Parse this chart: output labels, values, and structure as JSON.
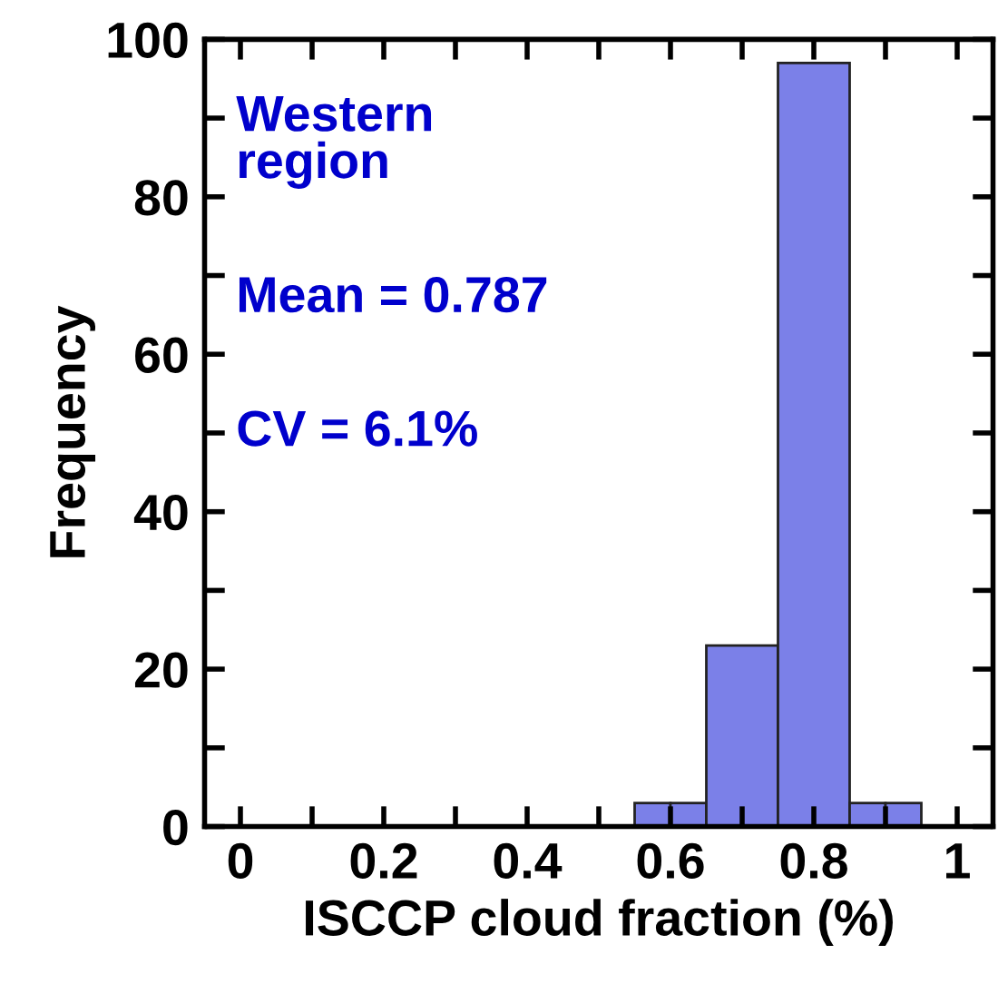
{
  "chart_data": {
    "type": "histogram",
    "xlabel": "ISCCP cloud fraction (%)",
    "ylabel": "Frequency",
    "bins": [
      0.55,
      0.6,
      0.65,
      0.75,
      0.85,
      0.9,
      0.95
    ],
    "values": [
      3,
      3,
      23,
      97,
      3,
      3
    ],
    "color": "#7b80e8",
    "xlim": [
      -0.05,
      1.05
    ],
    "xticks": [
      0,
      {
        "value": 0.1,
        "label": null
      },
      0.2,
      {
        "value": 0.3,
        "label": null
      },
      0.4,
      {
        "value": 0.5,
        "label": null
      },
      0.6,
      {
        "value": 0.7,
        "label": null
      },
      0.8,
      {
        "value": 0.9,
        "label": null
      },
      1
    ],
    "ylim": [
      0,
      100
    ],
    "yticks": [
      0,
      {
        "value": 10,
        "label": null
      },
      20,
      {
        "value": 30,
        "label": null
      },
      40,
      {
        "value": 50,
        "label": null
      },
      60,
      {
        "value": 70,
        "label": null
      },
      80,
      {
        "value": 90,
        "label": null
      },
      100
    ],
    "annotations": [
      "Western\nregion",
      "Mean = 0.787",
      "CV = 6.1%"
    ],
    "grid": false,
    "legend": false
  }
}
